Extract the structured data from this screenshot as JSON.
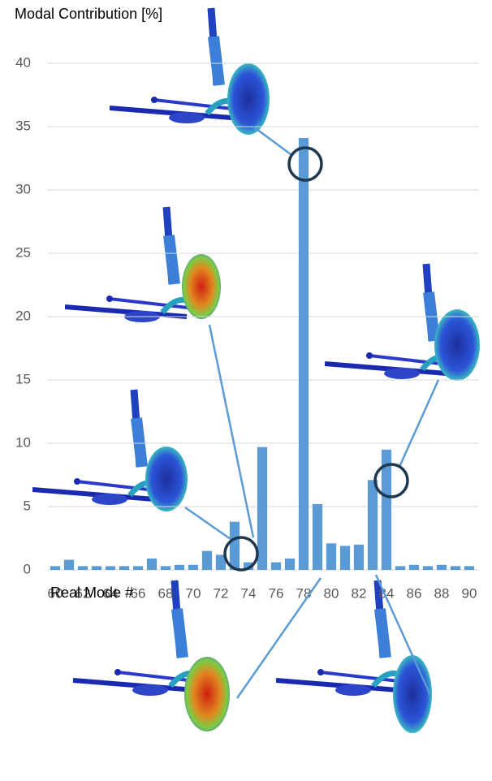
{
  "chart_data": {
    "type": "bar",
    "y_label": "Modal Contribution [%]",
    "x_label": "Real Mode #",
    "x": [
      60,
      61,
      62,
      63,
      64,
      65,
      66,
      67,
      68,
      69,
      70,
      71,
      72,
      73,
      74,
      75,
      76,
      77,
      78,
      79,
      80,
      81,
      82,
      83,
      84,
      85,
      86,
      87,
      88,
      89,
      90
    ],
    "values": [
      0.3,
      0.8,
      0.3,
      0.3,
      0.3,
      0.3,
      0.3,
      0.9,
      0.3,
      0.4,
      0.4,
      1.5,
      1.2,
      3.8,
      0.6,
      9.7,
      0.6,
      0.9,
      34.1,
      5.2,
      2.1,
      1.9,
      2.0,
      7.1,
      9.5,
      0.3,
      0.4,
      0.3,
      0.4,
      0.3,
      0.3
    ],
    "color": "#5b9bd5",
    "xlim": [
      59.5,
      90.5
    ],
    "xticks": [
      60,
      62,
      64,
      66,
      68,
      70,
      72,
      74,
      76,
      78,
      80,
      82,
      84,
      86,
      88,
      90
    ],
    "ylim": [
      0,
      40
    ],
    "yticks": [
      0,
      5,
      10,
      15,
      20,
      25,
      30,
      35,
      40
    ],
    "grid": true
  }
}
